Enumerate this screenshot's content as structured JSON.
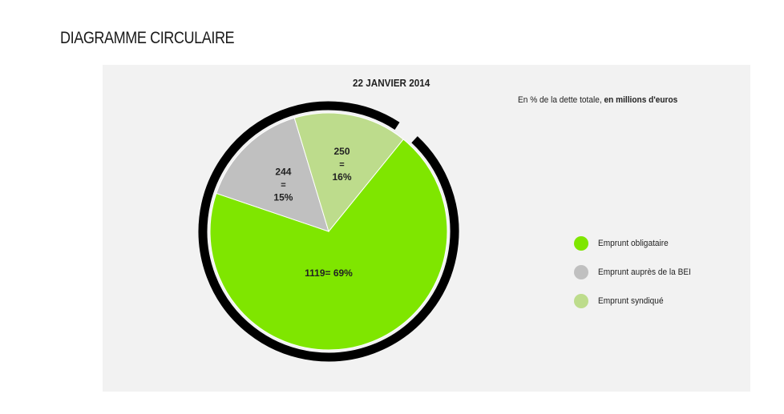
{
  "page_title": "DIAGRAMME CIRCULAIRE",
  "chart_data": {
    "type": "pie",
    "title": "22 JANVIER 2014",
    "subtitle_regular": "En % de la dette totale, ",
    "subtitle_bold": "en millions d'euros",
    "slices": [
      {
        "name": "Emprunt obligataire",
        "value": 1119,
        "percent": 69,
        "label_lines": [
          "1119= 69%"
        ],
        "color": "#7fe600"
      },
      {
        "name": "Emprunt  auprès de la BEI",
        "value": 244,
        "percent": 15,
        "label_lines": [
          "244",
          "=",
          "15%"
        ],
        "color": "#c0c0c0"
      },
      {
        "name": "Emprunt syndiqué",
        "value": 250,
        "percent": 16,
        "label_lines": [
          "250",
          "=",
          "16%"
        ],
        "color": "#bddc8c"
      }
    ],
    "legend_position": "right",
    "outline_color": "#000000"
  }
}
